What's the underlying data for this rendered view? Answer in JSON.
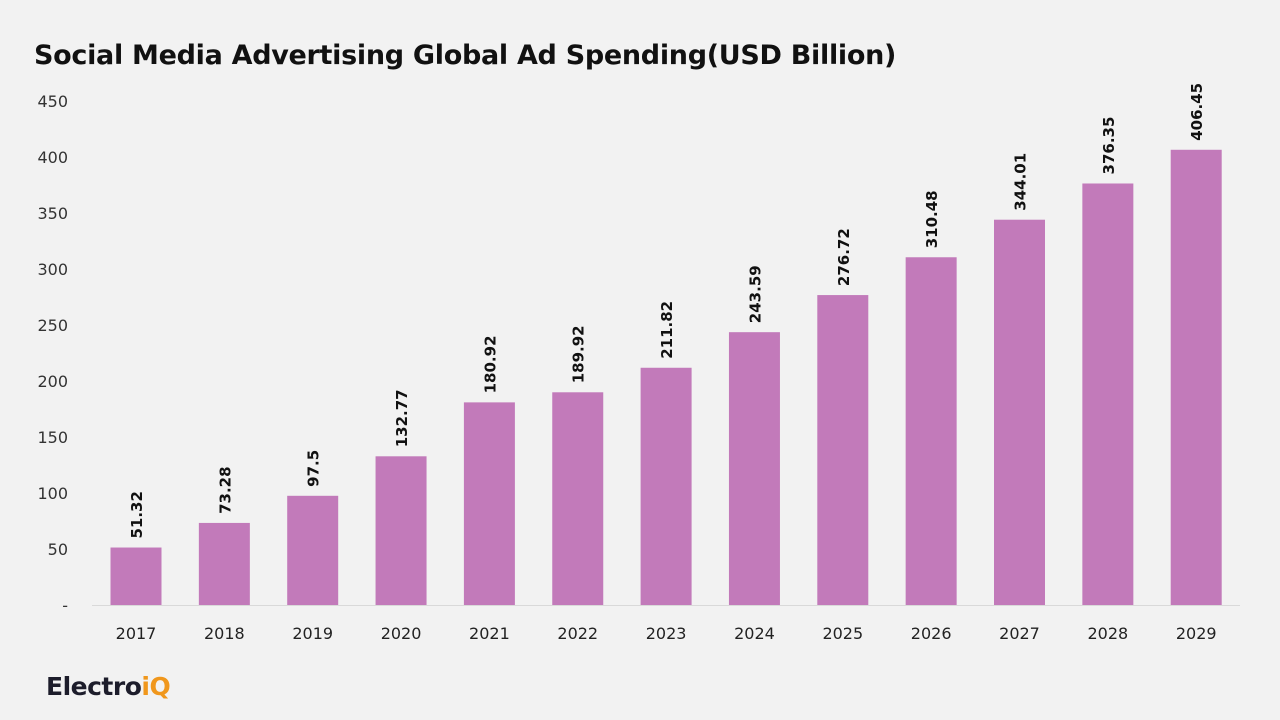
{
  "chart_data": {
    "type": "bar",
    "title": "Social Media Advertising Global Ad Spending(USD Billion)",
    "categories": [
      "2017",
      "2018",
      "2019",
      "2020",
      "2021",
      "2022",
      "2023",
      "2024",
      "2025",
      "2026",
      "2027",
      "2028",
      "2029"
    ],
    "values": [
      51.32,
      73.28,
      97.5,
      132.77,
      180.92,
      189.92,
      211.82,
      243.59,
      276.72,
      310.48,
      344.01,
      376.35,
      406.45
    ],
    "data_labels": [
      "51.32",
      "73.28",
      "97.5",
      "132.77",
      "180.92",
      "189.92",
      "211.82",
      "243.59",
      "276.72",
      "310.48",
      "344.01",
      "376.35",
      "406.45"
    ],
    "xlabel": "",
    "ylabel": "",
    "ylim": [
      0,
      450
    ],
    "yticks": [
      0,
      50,
      100,
      150,
      200,
      250,
      300,
      350,
      400,
      450
    ],
    "ytick_labels": [
      "-",
      "50",
      "100",
      "150",
      "200",
      "250",
      "300",
      "350",
      "400",
      "450"
    ],
    "grid": false,
    "legend": "none",
    "bar_color": "#c27aba",
    "background": "#f2f2f2"
  },
  "logo": {
    "text_main": "Electro",
    "text_accent": "iQ",
    "accent_color": "#f0971c"
  }
}
